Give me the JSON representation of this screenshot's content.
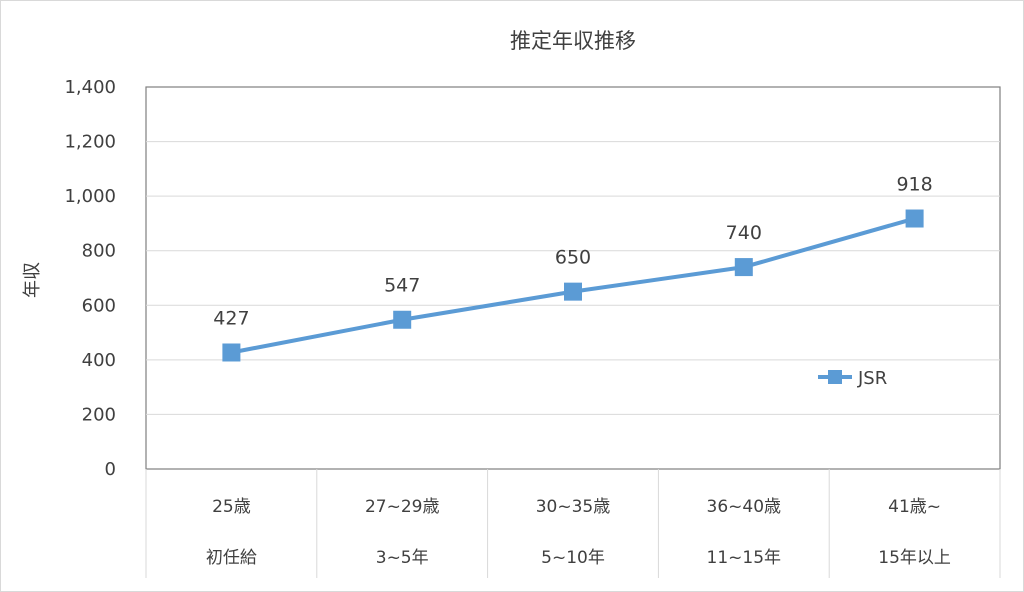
{
  "chart_data": {
    "type": "line",
    "title": "推定年収推移",
    "ylabel": "年収",
    "xlabel": "",
    "ylim": [
      0,
      1400
    ],
    "yticks": [
      "0",
      "200",
      "400",
      "600",
      "800",
      "1,000",
      "1,200",
      "1,400"
    ],
    "ytick_values": [
      0,
      200,
      400,
      600,
      800,
      1000,
      1200,
      1400
    ],
    "categories": [
      {
        "age": "25歳",
        "tenure": "初任給"
      },
      {
        "age": "27~29歳",
        "tenure": "3~5年"
      },
      {
        "age": "30~35歳",
        "tenure": "5~10年"
      },
      {
        "age": "36~40歳",
        "tenure": "11~15年"
      },
      {
        "age": "41歳~",
        "tenure": "15年以上"
      }
    ],
    "series": [
      {
        "name": "JSR",
        "values": [
          427,
          547,
          650,
          740,
          918
        ],
        "data_labels": [
          "427",
          "547",
          "650",
          "740",
          "918"
        ],
        "color": "#5b9bd5"
      }
    ],
    "grid": true,
    "legend": "inside-right"
  }
}
